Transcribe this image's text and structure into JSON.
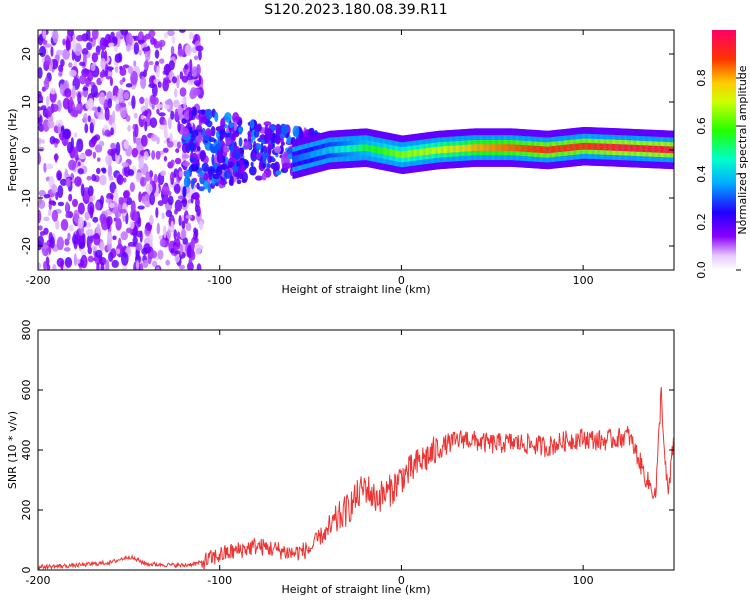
{
  "figure": {
    "title": "S120.2023.180.08.39.R11"
  },
  "chart_data": [
    {
      "type": "heatmap",
      "xlabel": "Height of straight line (km)",
      "ylabel": "Frequency (Hz)",
      "xlim": [
        -200,
        150
      ],
      "ylim": [
        -25,
        25
      ],
      "x_ticks": [
        -200,
        -100,
        0,
        100
      ],
      "y_ticks": [
        -20,
        -10,
        0,
        10,
        20
      ],
      "colorbar": {
        "label": "Normalized spectral amplitude",
        "range": [
          0,
          1
        ],
        "ticks": [
          "0.0",
          "0.2",
          "0.4",
          "0.6",
          "0.8"
        ],
        "colormap": "rainbow (violet → blue → cyan → green → yellow → red → magenta)"
      },
      "description_points": {
        "ridge_x": [
          -60,
          -40,
          -20,
          0,
          20,
          40,
          60,
          80,
          100,
          120,
          150
        ],
        "ridge_freq": [
          -2,
          0,
          0.5,
          -1,
          0,
          0.5,
          0.5,
          0,
          0.8,
          0.5,
          0
        ],
        "ridge_amplitude": [
          0.3,
          0.4,
          0.55,
          0.65,
          0.7,
          0.8,
          0.85,
          0.9,
          0.9,
          0.95,
          0.95
        ]
      },
      "grid": false
    },
    {
      "type": "line",
      "xlabel": "Height of straight line (km)",
      "ylabel": "SNR (10 * v/v)",
      "xlim": [
        -200,
        150
      ],
      "ylim": [
        0,
        800
      ],
      "x_ticks": [
        -200,
        -100,
        0,
        100
      ],
      "y_ticks": [
        0,
        200,
        400,
        600,
        800
      ],
      "color": "#ee3333",
      "series": [
        {
          "x": [
            -200,
            -180,
            -160,
            -150,
            -140,
            -120,
            -110,
            -100,
            -90,
            -80,
            -70,
            -60,
            -50,
            -45,
            -40,
            -35,
            -30,
            -25,
            -20,
            -15,
            -10,
            -5,
            0,
            5,
            10,
            15,
            20,
            25,
            30,
            35,
            40,
            50,
            60,
            70,
            80,
            90,
            100,
            110,
            120,
            125,
            130,
            135,
            140,
            143,
            145,
            147,
            150
          ],
          "y": [
            10,
            15,
            25,
            45,
            20,
            15,
            25,
            50,
            65,
            80,
            70,
            55,
            70,
            110,
            130,
            170,
            200,
            240,
            280,
            240,
            250,
            270,
            310,
            330,
            360,
            380,
            400,
            420,
            430,
            440,
            430,
            420,
            425,
            420,
            410,
            430,
            440,
            430,
            440,
            450,
            380,
            300,
            250,
            600,
            350,
            250,
            450
          ]
        }
      ],
      "grid": false
    }
  ]
}
